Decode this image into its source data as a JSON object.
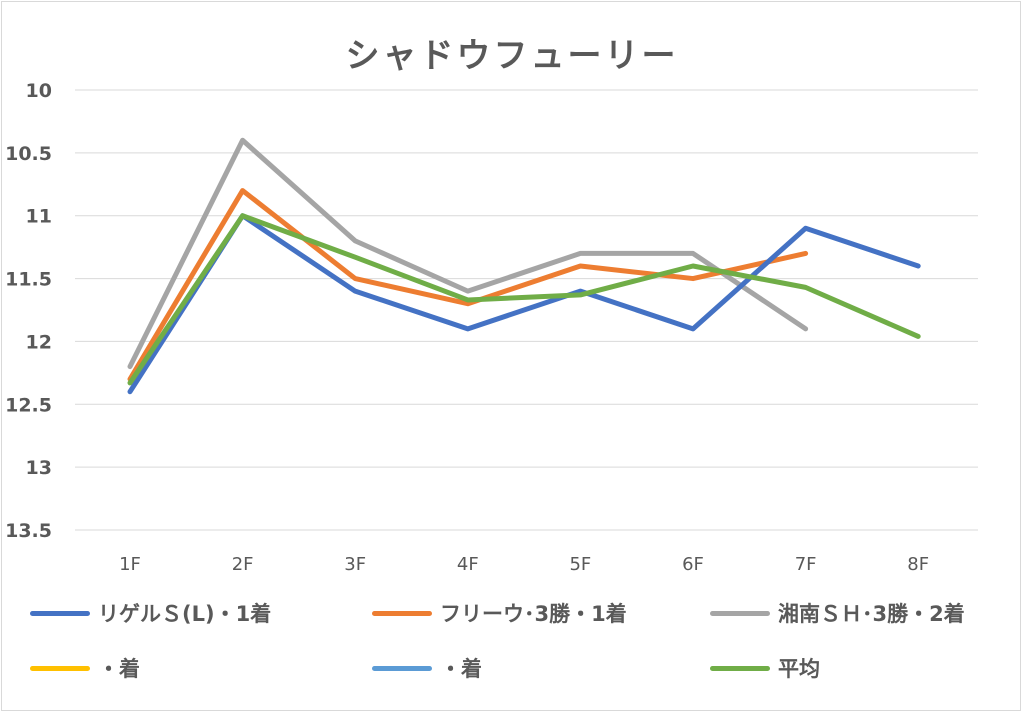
{
  "chart_data": {
    "type": "line",
    "title": "シャドウフューリー",
    "categories": [
      "1F",
      "2F",
      "3F",
      "4F",
      "5F",
      "6F",
      "7F",
      "8F"
    ],
    "y_reversed": true,
    "ylim": [
      10,
      13.5
    ],
    "y_ticks": [
      "10",
      "10.5",
      "11",
      "11.5",
      "12",
      "12.5",
      "13",
      "13.5"
    ],
    "grid": true,
    "legend_position": "bottom",
    "series": [
      {
        "name": "リゲルＳ(L)・1着",
        "color": "#4472c4",
        "values": [
          12.4,
          11.0,
          11.6,
          11.9,
          11.6,
          11.9,
          11.1,
          11.4
        ]
      },
      {
        "name": "フリーウ･3勝・1着",
        "color": "#ed7d31",
        "values": [
          12.3,
          10.8,
          11.5,
          11.7,
          11.4,
          11.5,
          11.3,
          null
        ]
      },
      {
        "name": "湘南ＳＨ･3勝・2着",
        "color": "#a5a5a5",
        "values": [
          12.2,
          10.4,
          11.2,
          11.6,
          11.3,
          11.3,
          11.9,
          null
        ]
      },
      {
        "name": "・着",
        "color": "#ffc000",
        "values": [
          null,
          null,
          null,
          null,
          null,
          null,
          null,
          null
        ]
      },
      {
        "name": "・着",
        "color": "#5b9bd5",
        "values": [
          null,
          null,
          null,
          null,
          null,
          null,
          null,
          null
        ]
      },
      {
        "name": "平均",
        "color": "#70ad47",
        "values": [
          12.33,
          11.0,
          11.33,
          11.67,
          11.63,
          11.4,
          11.57,
          11.96
        ]
      }
    ]
  }
}
